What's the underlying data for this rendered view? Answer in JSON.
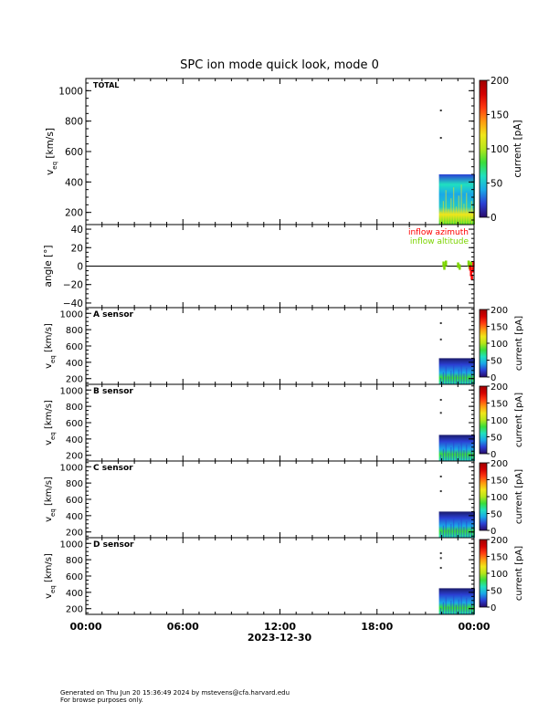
{
  "chart_data": {
    "type": "heatmap",
    "title": "SPC ion mode quick look, mode 0",
    "date_label": "2023-12-30",
    "x_ticks": [
      "00:00",
      "06:00",
      "12:00",
      "18:00",
      "00:00"
    ],
    "x_range_hours": [
      0,
      24
    ],
    "colorbar": {
      "label": "current [pA]",
      "range": [
        0,
        200
      ],
      "ticks_major": [
        "0",
        "50",
        "100",
        "150",
        "200"
      ],
      "colorscale": [
        "#2a0a6a",
        "#2b40d4",
        "#1aa8e8",
        "#20e0c0",
        "#3ade3a",
        "#b6e61a",
        "#f0e61a",
        "#ff9a10",
        "#ff3a10",
        "#d40000",
        "#a00000"
      ]
    },
    "panels": [
      {
        "id": "total",
        "label": "TOTAL",
        "ylabel_main": "v",
        "ylabel_sub": "eq",
        "ylabel_unit": " [km/s]",
        "y_range": [
          120,
          1080
        ],
        "y_ticks": [
          200,
          400,
          600,
          800,
          1000
        ],
        "data_window_hours": [
          22.0,
          24.0
        ],
        "data_v_range": [
          150,
          450
        ],
        "sparse_points": [
          [
            21.95,
            870
          ],
          [
            21.95,
            690
          ]
        ]
      },
      {
        "id": "angle",
        "ylabel": "angle [°]",
        "y_range": [
          -45,
          45
        ],
        "y_ticks": [
          -40,
          -20,
          0,
          20,
          40
        ],
        "legend": [
          {
            "name": "inflow azimuth",
            "color": "#ff0000"
          },
          {
            "name": "inflow altitude",
            "color": "#7cd400"
          }
        ],
        "azimuth_points": [
          [
            23.75,
            -2
          ],
          [
            23.8,
            -8
          ],
          [
            23.85,
            -12
          ],
          [
            23.9,
            -4
          ],
          [
            23.95,
            2
          ]
        ],
        "altitude_points": [
          [
            22.1,
            2
          ],
          [
            22.15,
            -1
          ],
          [
            22.25,
            3
          ],
          [
            23.0,
            1
          ],
          [
            23.1,
            -1
          ],
          [
            23.65,
            3
          ],
          [
            23.7,
            0
          ],
          [
            23.8,
            2
          ]
        ]
      },
      {
        "id": "a",
        "label": "A sensor",
        "ylabel_main": "v",
        "ylabel_sub": "eq",
        "ylabel_unit": " [km/s]",
        "y_range": [
          130,
          1070
        ],
        "y_ticks": [
          200,
          400,
          600,
          800,
          1000
        ],
        "data_window_hours": [
          22.0,
          24.0
        ],
        "data_v_range": [
          150,
          450
        ],
        "sparse_points": [
          [
            21.95,
            880
          ],
          [
            21.95,
            680
          ]
        ]
      },
      {
        "id": "b",
        "label": "B sensor",
        "ylabel_main": "v",
        "ylabel_sub": "eq",
        "ylabel_unit": " [km/s]",
        "y_range": [
          130,
          1070
        ],
        "y_ticks": [
          200,
          400,
          600,
          800,
          1000
        ],
        "data_window_hours": [
          22.0,
          24.0
        ],
        "data_v_range": [
          150,
          450
        ],
        "sparse_points": [
          [
            21.95,
            880
          ],
          [
            21.95,
            720
          ]
        ]
      },
      {
        "id": "c",
        "label": "C sensor",
        "ylabel_main": "v",
        "ylabel_sub": "eq",
        "ylabel_unit": " [km/s]",
        "y_range": [
          130,
          1070
        ],
        "y_ticks": [
          200,
          400,
          600,
          800,
          1000
        ],
        "data_window_hours": [
          22.0,
          24.0
        ],
        "data_v_range": [
          150,
          450
        ],
        "sparse_points": [
          [
            21.95,
            880
          ],
          [
            21.95,
            700
          ]
        ]
      },
      {
        "id": "d",
        "label": "D sensor",
        "ylabel_main": "v",
        "ylabel_sub": "eq",
        "ylabel_unit": " [km/s]",
        "y_range": [
          130,
          1070
        ],
        "y_ticks": [
          200,
          400,
          600,
          800,
          1000
        ],
        "data_window_hours": [
          22.0,
          24.0
        ],
        "data_v_range": [
          150,
          450
        ],
        "sparse_points": [
          [
            21.95,
            880
          ],
          [
            21.95,
            820
          ],
          [
            21.95,
            700
          ]
        ]
      }
    ]
  },
  "footer": {
    "line1": "Generated on Thu Jun 20 15:36:49 2024 by mstevens@cfa.harvard.edu",
    "line2": "For browse purposes only."
  }
}
